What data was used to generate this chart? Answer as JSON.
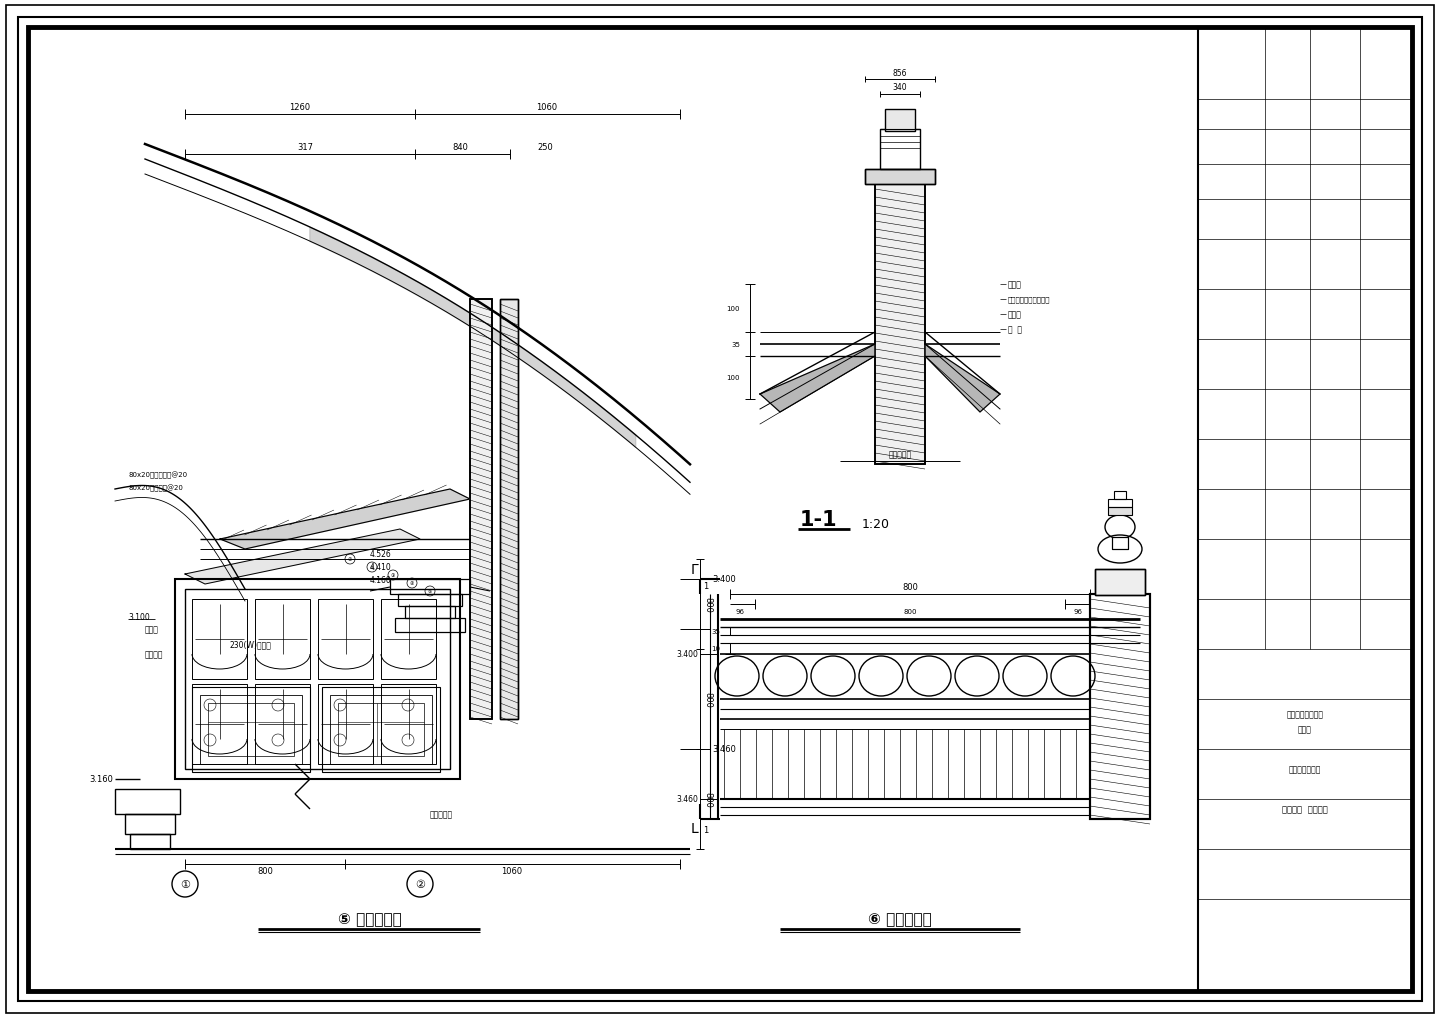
{
  "bg_color": "#ffffff",
  "title1": "⑤ 廐轩大样图",
  "title2": "⑥ 正脊大样图",
  "detail_title": "廐轩大样  正脊大样",
  "project_name": "杭州天天放生院",
  "company1": "浙江传统建筑设计",
  "company2": "研究院",
  "note1": "奕花筒",
  "note2": "水泥手工修饰面戛线角",
  "note3": "砖绳纹",
  "note4": "青  瓦",
  "note5": "钉出堆土层",
  "label_80x20a": "80x20预制正身樼@20",
  "label_80x20b": "80x20预制飞樼@20",
  "label_dougong": "斗拱高",
  "label_mulouge": "木楼盖层",
  "label_konghua": "230(W)空花砖",
  "label_door": "铝合金门窗",
  "label_11": "1-1",
  "scale_11": "1:20"
}
